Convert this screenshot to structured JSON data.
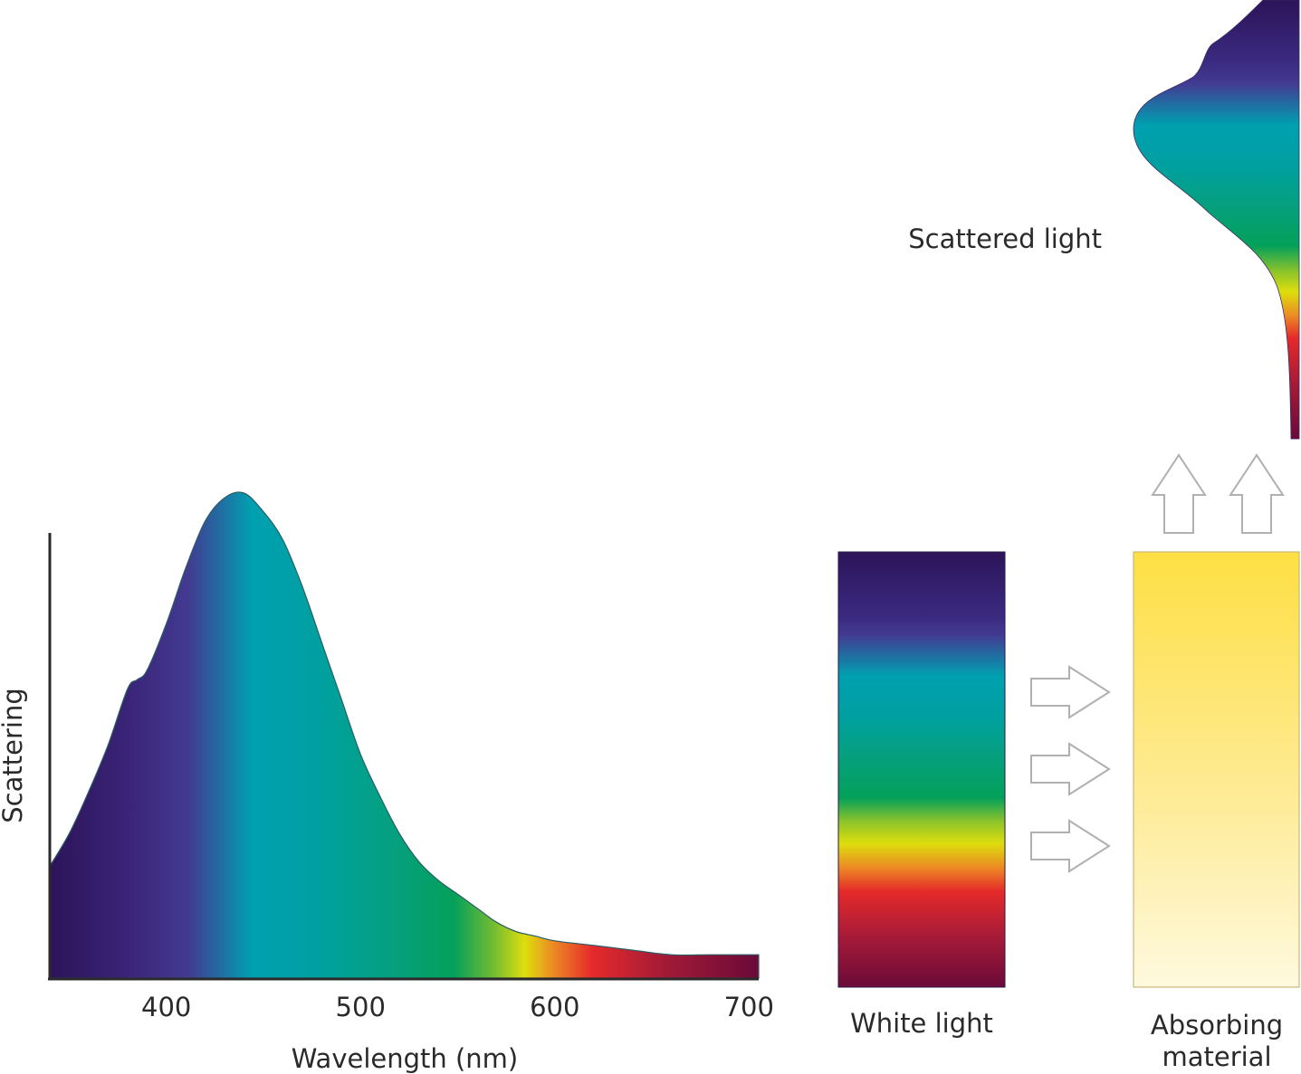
{
  "chart_data": {
    "type": "area",
    "title": "",
    "xlabel": "Wavelength (nm)",
    "ylabel": "Scattering",
    "xlim": [
      340,
      705
    ],
    "ylim": [
      0,
      1
    ],
    "x_ticks": [
      400,
      500,
      600,
      700
    ],
    "grid": false,
    "legend": "none",
    "series": [
      {
        "x": [
          340,
          350,
          360,
          370,
          380,
          385,
          390,
          400,
          410,
          420,
          430,
          440,
          450,
          460,
          470,
          480,
          490,
          500,
          510,
          520,
          530,
          540,
          550,
          560,
          570,
          580,
          590,
          600,
          620,
          640,
          660,
          680,
          705
        ],
        "y": [
          0.24,
          0.31,
          0.4,
          0.5,
          0.62,
          0.64,
          0.66,
          0.76,
          0.88,
          0.98,
          1.03,
          1.04,
          1.0,
          0.94,
          0.84,
          0.72,
          0.6,
          0.48,
          0.39,
          0.31,
          0.25,
          0.21,
          0.18,
          0.15,
          0.12,
          0.1,
          0.09,
          0.08,
          0.07,
          0.06,
          0.05,
          0.05,
          0.05
        ]
      }
    ]
  },
  "labels": {
    "white_light": "White light",
    "absorbing_material_line1": "Absorbing",
    "absorbing_material_line2": "material",
    "scattered_light": "Scattered light"
  },
  "colors": {
    "violet_dark": "#2d1459",
    "violet": "#433a92",
    "cyan": "#00a0b0",
    "teal": "#05a081",
    "green": "#04a05a",
    "yellow": "#ddde0c",
    "orange": "#ec8a24",
    "red": "#e52a2a",
    "maroon": "#6b0a38",
    "material_yellow": "#fedf44",
    "material_light": "#fef9de",
    "arrow_stroke": "#b0b0b0",
    "axis": "#2a2a2a"
  }
}
